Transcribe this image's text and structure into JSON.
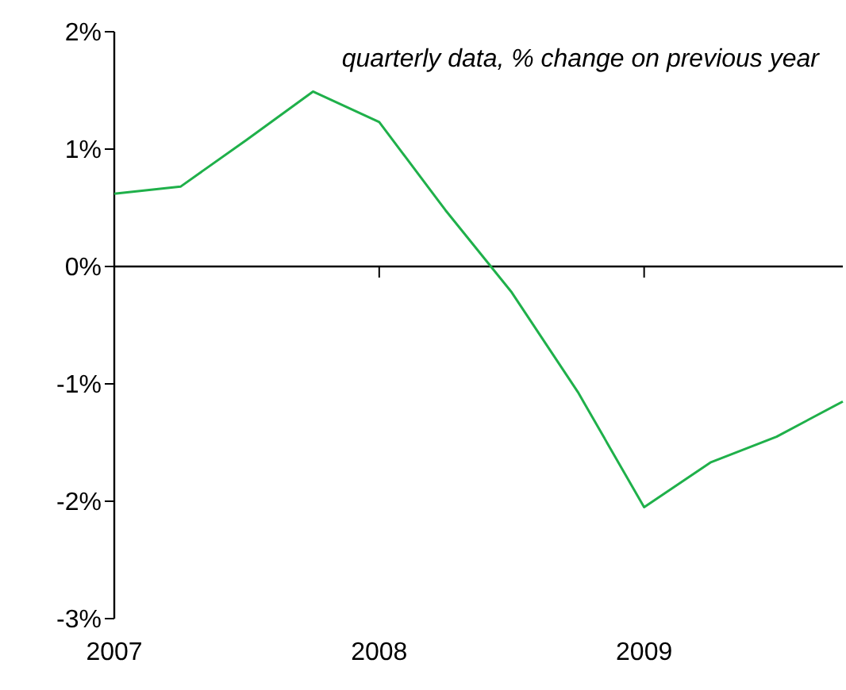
{
  "chart_data": {
    "type": "line",
    "annotations": [
      "quarterly data, % change on previous year"
    ],
    "x": [
      2007,
      2007.25,
      2007.5,
      2007.75,
      2008,
      2008.25,
      2008.5,
      2008.75,
      2009,
      2009.25,
      2009.5,
      2009.75
    ],
    "series": [
      {
        "color": "#1fb04a",
        "values": [
          0.62,
          0.68,
          1.08,
          1.49,
          1.23,
          0.48,
          -0.22,
          -1.07,
          -2.05,
          -1.67,
          -1.45,
          -1.15
        ]
      }
    ],
    "xlim": [
      2007,
      2009.75
    ],
    "xticks": [
      2007,
      2008,
      2009
    ],
    "ylim": [
      -3,
      2
    ],
    "yticks": [
      {
        "value": -3,
        "label": "-3%"
      },
      {
        "value": -2,
        "label": "-2%"
      },
      {
        "value": -1,
        "label": "-1%"
      },
      {
        "value": 0,
        "label": "0%"
      },
      {
        "value": 1,
        "label": "1%"
      },
      {
        "value": 2,
        "label": "2%"
      }
    ],
    "marker": "none",
    "line_style": "solid"
  }
}
